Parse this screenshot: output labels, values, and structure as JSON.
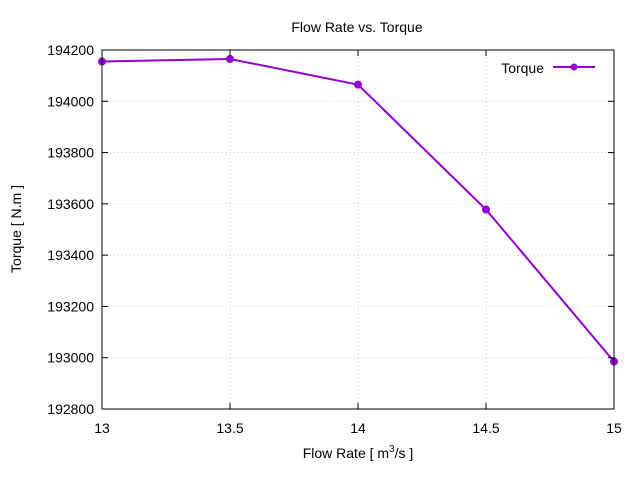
{
  "chart_data": {
    "type": "line",
    "title": "Flow Rate vs. Torque",
    "xlabel": "Flow Rate [ m3/s ]",
    "xlabel_parts": {
      "pre": "Flow Rate [ m",
      "sup": "3",
      "post": "/s ]"
    },
    "ylabel": "Torque [ N.m ]",
    "xlim": [
      13,
      15
    ],
    "ylim": [
      192800,
      194200
    ],
    "xticks": [
      13,
      13.5,
      14,
      14.5,
      15
    ],
    "xtick_labels": [
      "13",
      "13.5",
      "14",
      "14.5",
      "15"
    ],
    "yticks": [
      192800,
      193000,
      193200,
      193400,
      193600,
      193800,
      194000,
      194200
    ],
    "ytick_labels": [
      "192800",
      "193000",
      "193200",
      "193400",
      "193600",
      "193800",
      "194000",
      "194200"
    ],
    "grid": true,
    "legend_position": "top-right",
    "series": [
      {
        "name": "Torque",
        "color": "#9400d3",
        "x": [
          13,
          13.5,
          14,
          14.5,
          15
        ],
        "y": [
          194155,
          194165,
          194065,
          193578,
          192985
        ]
      }
    ]
  }
}
